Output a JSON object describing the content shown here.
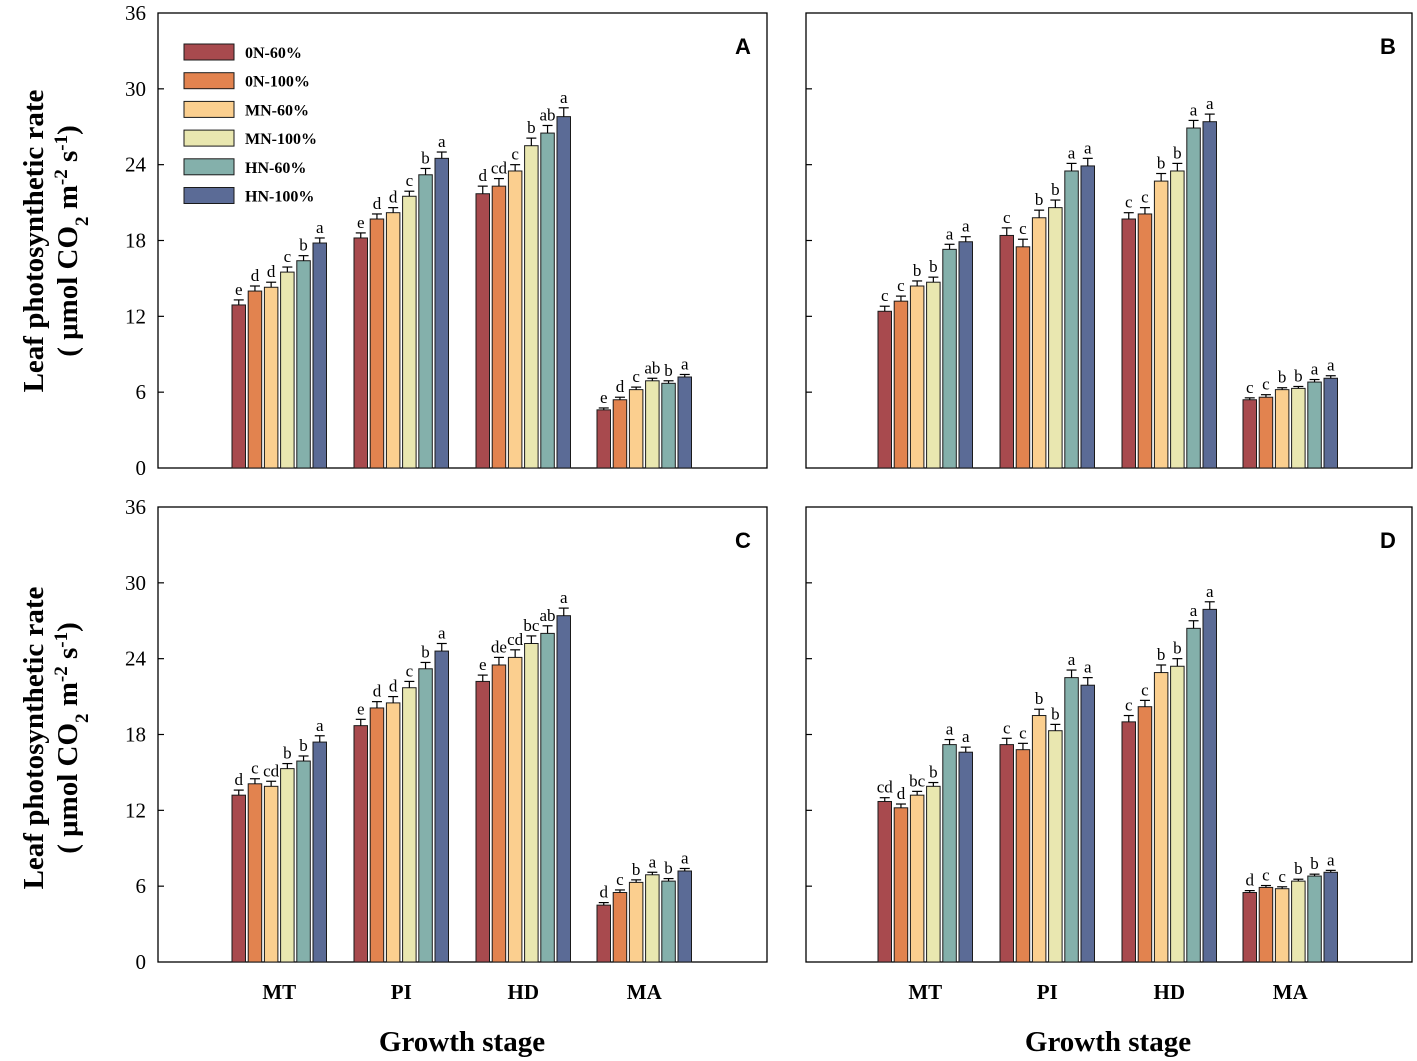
{
  "colors": {
    "series": [
      "#a84a4e",
      "#e2834f",
      "#fbcf8f",
      "#e9e7b0",
      "#84b0ab",
      "#5b6b96"
    ],
    "frame": "#000000"
  },
  "y_title_line1": "Leaf photosynthetic rate",
  "y_title_line2_a": "( μmol CO",
  "y_title_sub_2": "2",
  "y_title_line2_b": " m",
  "y_title_sup_m2": "-2",
  "y_title_line2_c": " s",
  "y_title_sup_s1": "-1",
  "y_title_line2_d": ")",
  "x_title": "Growth stage",
  "chart_data": [
    {
      "type": "bar",
      "panel": "A",
      "categories": [
        "MT",
        "PI",
        "HD",
        "MA"
      ],
      "ylim": [
        0,
        36
      ],
      "yticks": [
        "0",
        "6",
        "12",
        "18",
        "24",
        "30",
        "36"
      ],
      "legend": "top-left",
      "series": [
        {
          "name": "0N-60%",
          "values": [
            12.9,
            18.2,
            21.7,
            4.6
          ],
          "errors": [
            0.4,
            0.4,
            0.6,
            0.15
          ],
          "letters": [
            "e",
            "e",
            "d",
            "e"
          ]
        },
        {
          "name": "0N-100%",
          "values": [
            14.0,
            19.7,
            22.3,
            5.4
          ],
          "errors": [
            0.4,
            0.4,
            0.6,
            0.2
          ],
          "letters": [
            "d",
            "d",
            "cd",
            "d"
          ]
        },
        {
          "name": "MN-60%",
          "values": [
            14.3,
            20.2,
            23.5,
            6.2
          ],
          "errors": [
            0.4,
            0.4,
            0.5,
            0.2
          ],
          "letters": [
            "d",
            "d",
            "c",
            "c"
          ]
        },
        {
          "name": "MN-100%",
          "values": [
            15.5,
            21.5,
            25.5,
            6.9
          ],
          "errors": [
            0.4,
            0.4,
            0.6,
            0.2
          ],
          "letters": [
            "c",
            "c",
            "b",
            "ab"
          ]
        },
        {
          "name": "HN-60%",
          "values": [
            16.4,
            23.2,
            26.5,
            6.7
          ],
          "errors": [
            0.4,
            0.5,
            0.6,
            0.2
          ],
          "letters": [
            "b",
            "b",
            "ab",
            "b"
          ]
        },
        {
          "name": "HN-100%",
          "values": [
            17.8,
            24.5,
            27.8,
            7.2
          ],
          "errors": [
            0.4,
            0.5,
            0.7,
            0.2
          ],
          "letters": [
            "a",
            "a",
            "a",
            "a"
          ]
        }
      ]
    },
    {
      "type": "bar",
      "panel": "B",
      "categories": [
        "MT",
        "PI",
        "HD",
        "MA"
      ],
      "ylim": [
        0,
        36
      ],
      "yticks": [
        "0",
        "6",
        "12",
        "18",
        "24",
        "30",
        "36"
      ],
      "series": [
        {
          "name": "0N-60%",
          "values": [
            12.4,
            18.4,
            19.7,
            5.4
          ],
          "errors": [
            0.4,
            0.6,
            0.5,
            0.15
          ],
          "letters": [
            "c",
            "c",
            "c",
            "c"
          ]
        },
        {
          "name": "0N-100%",
          "values": [
            13.2,
            17.5,
            20.1,
            5.6
          ],
          "errors": [
            0.4,
            0.6,
            0.5,
            0.2
          ],
          "letters": [
            "c",
            "c",
            "c",
            "c"
          ]
        },
        {
          "name": "MN-60%",
          "values": [
            14.4,
            19.8,
            22.7,
            6.2
          ],
          "errors": [
            0.4,
            0.6,
            0.6,
            0.15
          ],
          "letters": [
            "b",
            "b",
            "b",
            "b"
          ]
        },
        {
          "name": "MN-100%",
          "values": [
            14.7,
            20.6,
            23.5,
            6.3
          ],
          "errors": [
            0.4,
            0.6,
            0.6,
            0.15
          ],
          "letters": [
            "b",
            "b",
            "b",
            "b"
          ]
        },
        {
          "name": "HN-60%",
          "values": [
            17.3,
            23.5,
            26.9,
            6.8
          ],
          "errors": [
            0.4,
            0.6,
            0.6,
            0.2
          ],
          "letters": [
            "a",
            "a",
            "a",
            "a"
          ]
        },
        {
          "name": "HN-100%",
          "values": [
            17.9,
            23.9,
            27.4,
            7.1
          ],
          "errors": [
            0.4,
            0.6,
            0.6,
            0.2
          ],
          "letters": [
            "a",
            "a",
            "a",
            "a"
          ]
        }
      ]
    },
    {
      "type": "bar",
      "panel": "C",
      "categories": [
        "MT",
        "PI",
        "HD",
        "MA"
      ],
      "ylim": [
        0,
        36
      ],
      "yticks": [
        "0",
        "6",
        "12",
        "18",
        "24",
        "30",
        "36"
      ],
      "series": [
        {
          "name": "0N-60%",
          "values": [
            13.2,
            18.7,
            22.2,
            4.5
          ],
          "errors": [
            0.4,
            0.5,
            0.5,
            0.2
          ],
          "letters": [
            "d",
            "e",
            "e",
            "d"
          ]
        },
        {
          "name": "0N-100%",
          "values": [
            14.1,
            20.1,
            23.5,
            5.5
          ],
          "errors": [
            0.4,
            0.5,
            0.6,
            0.2
          ],
          "letters": [
            "c",
            "d",
            "de",
            "c"
          ]
        },
        {
          "name": "MN-60%",
          "values": [
            13.9,
            20.5,
            24.1,
            6.3
          ],
          "errors": [
            0.4,
            0.5,
            0.6,
            0.2
          ],
          "letters": [
            "cd",
            "d",
            "cd",
            "b"
          ]
        },
        {
          "name": "MN-100%",
          "values": [
            15.3,
            21.7,
            25.2,
            6.9
          ],
          "errors": [
            0.4,
            0.5,
            0.6,
            0.2
          ],
          "letters": [
            "b",
            "c",
            "bc",
            "a"
          ]
        },
        {
          "name": "HN-60%",
          "values": [
            15.9,
            23.2,
            26.0,
            6.4
          ],
          "errors": [
            0.4,
            0.5,
            0.6,
            0.2
          ],
          "letters": [
            "b",
            "b",
            "ab",
            "b"
          ]
        },
        {
          "name": "HN-100%",
          "values": [
            17.4,
            24.6,
            27.4,
            7.2
          ],
          "errors": [
            0.5,
            0.6,
            0.6,
            0.2
          ],
          "letters": [
            "a",
            "a",
            "a",
            "a"
          ]
        }
      ]
    },
    {
      "type": "bar",
      "panel": "D",
      "categories": [
        "MT",
        "PI",
        "HD",
        "MA"
      ],
      "ylim": [
        0,
        36
      ],
      "yticks": [
        "0",
        "6",
        "12",
        "18",
        "24",
        "30",
        "36"
      ],
      "series": [
        {
          "name": "0N-60%",
          "values": [
            12.7,
            17.2,
            19.0,
            5.5
          ],
          "errors": [
            0.3,
            0.5,
            0.5,
            0.15
          ],
          "letters": [
            "cd",
            "c",
            "c",
            "d"
          ]
        },
        {
          "name": "0N-100%",
          "values": [
            12.2,
            16.8,
            20.2,
            5.9
          ],
          "errors": [
            0.3,
            0.5,
            0.5,
            0.15
          ],
          "letters": [
            "d",
            "c",
            "c",
            "c"
          ]
        },
        {
          "name": "MN-60%",
          "values": [
            13.2,
            19.5,
            22.9,
            5.8
          ],
          "errors": [
            0.3,
            0.5,
            0.6,
            0.15
          ],
          "letters": [
            "bc",
            "b",
            "b",
            "c"
          ]
        },
        {
          "name": "MN-100%",
          "values": [
            13.9,
            18.3,
            23.4,
            6.4
          ],
          "errors": [
            0.3,
            0.5,
            0.6,
            0.15
          ],
          "letters": [
            "b",
            "b",
            "b",
            "b"
          ]
        },
        {
          "name": "HN-60%",
          "values": [
            17.2,
            22.5,
            26.4,
            6.8
          ],
          "errors": [
            0.4,
            0.6,
            0.6,
            0.15
          ],
          "letters": [
            "a",
            "a",
            "a",
            "b"
          ]
        },
        {
          "name": "HN-100%",
          "values": [
            16.6,
            21.9,
            27.9,
            7.1
          ],
          "errors": [
            0.4,
            0.6,
            0.6,
            0.15
          ],
          "letters": [
            "a",
            "a",
            "a",
            "a"
          ]
        }
      ]
    }
  ]
}
